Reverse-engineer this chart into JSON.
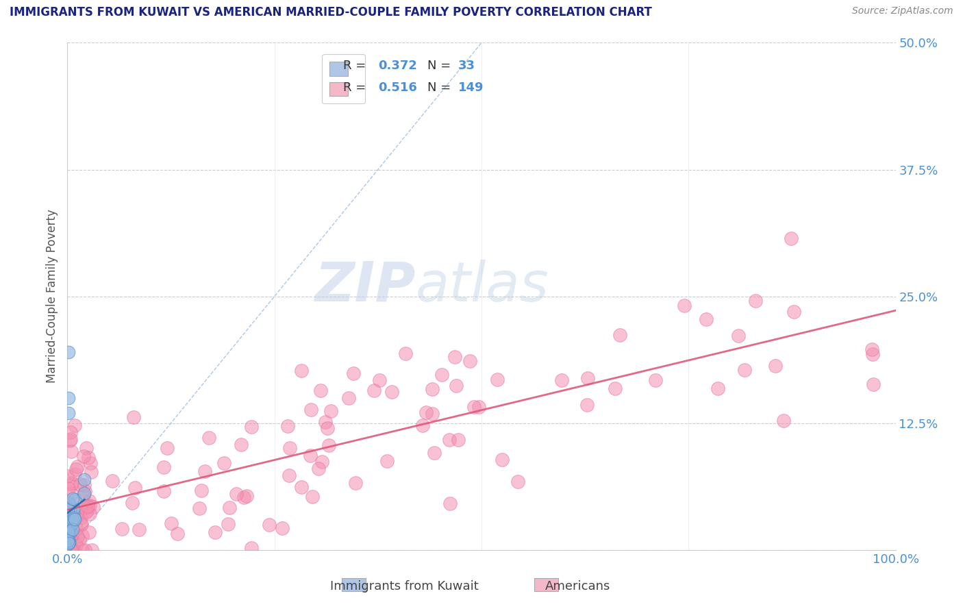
{
  "title": "IMMIGRANTS FROM KUWAIT VS AMERICAN MARRIED-COUPLE FAMILY POVERTY CORRELATION CHART",
  "source": "Source: ZipAtlas.com",
  "ylabel": "Married-Couple Family Poverty",
  "xlim": [
    0,
    1.0
  ],
  "ylim": [
    0,
    0.5
  ],
  "yticks": [
    0.0,
    0.125,
    0.25,
    0.375,
    0.5
  ],
  "yticklabels": [
    "",
    "12.5%",
    "25.0%",
    "37.5%",
    "50.0%"
  ],
  "watermark_zip": "ZIP",
  "watermark_atlas": "atlas",
  "background_color": "#ffffff",
  "plot_bg_color": "#ffffff",
  "grid_color": "#cccccc",
  "title_color": "#1a237e",
  "axis_label_color": "#555555",
  "tick_label_color": "#4a90d9",
  "kuwait_scatter_color": "#90b8e0",
  "kuwait_scatter_edge": "#5b8ac5",
  "american_scatter_color": "#f48fb1",
  "american_scatter_edge": "#e8769a",
  "kuwait_trend_color": "#3a6aaa",
  "american_trend_color": "#e05878",
  "diag_line_color": "#9ab8dc",
  "legend_box_color": "#aec6e8",
  "legend_american_color": "#f4b8c8",
  "legend_R_color": "#4a90d9",
  "legend_N_color": "#4a90d9"
}
